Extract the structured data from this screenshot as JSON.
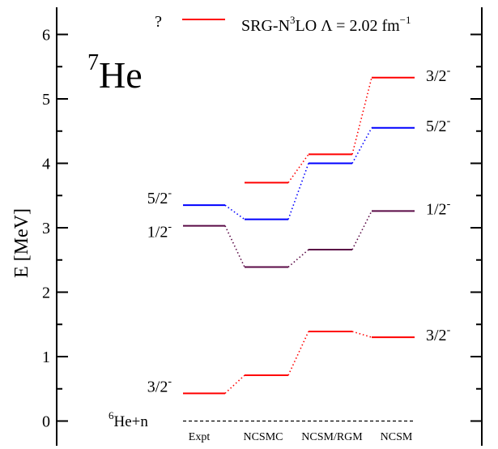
{
  "chart_data": {
    "type": "level-scheme",
    "nucleus": {
      "mass_number": "7",
      "symbol": "He"
    },
    "ylabel": "E [MeV]",
    "ylim": [
      -0.2,
      6.4
    ],
    "yticks": [
      "0",
      "1",
      "2",
      "3",
      "4",
      "5",
      "6"
    ],
    "methods": [
      "Expt",
      "NCSMC",
      "NCSM/RGM",
      "NCSM"
    ],
    "threshold": {
      "label_prefix": "6",
      "label_text": "He+n",
      "value": 0
    },
    "legend": {
      "marker_label": "?",
      "text": "SRG-N",
      "text_sup": "3",
      "text_after": "LO  Λ = 2.02 fm",
      "text_sup2": "−1"
    },
    "colors": {
      "red": "#ff0000",
      "blue": "#0000ff",
      "purple": "#5a0a46",
      "threshold": "#000000"
    },
    "series": [
      {
        "state": "3/2-",
        "color": "red",
        "values": [
          0.43,
          0.71,
          1.39,
          1.3
        ]
      },
      {
        "state": "1/2-",
        "color": "purple",
        "values": [
          3.03,
          2.39,
          2.66,
          3.26
        ]
      },
      {
        "state": "5/2-",
        "color": "blue",
        "values": [
          3.35,
          3.13,
          4.0,
          4.55
        ]
      },
      {
        "state": "3/2-",
        "color": "red",
        "values": [
          null,
          3.7,
          4.14,
          5.33
        ]
      }
    ],
    "left_labels": [
      {
        "base": "3/2",
        "sup": "-",
        "value": 0.43
      },
      {
        "base": "1/2",
        "sup": "-",
        "value": 3.03
      },
      {
        "base": "5/2",
        "sup": "-",
        "value": 3.35
      }
    ],
    "right_labels": [
      {
        "base": "3/2",
        "sup": "-",
        "value": 1.3
      },
      {
        "base": "1/2",
        "sup": "-",
        "value": 3.26
      },
      {
        "base": "5/2",
        "sup": "-",
        "value": 4.55
      },
      {
        "base": "3/2",
        "sup": "-",
        "value": 5.33
      }
    ]
  }
}
